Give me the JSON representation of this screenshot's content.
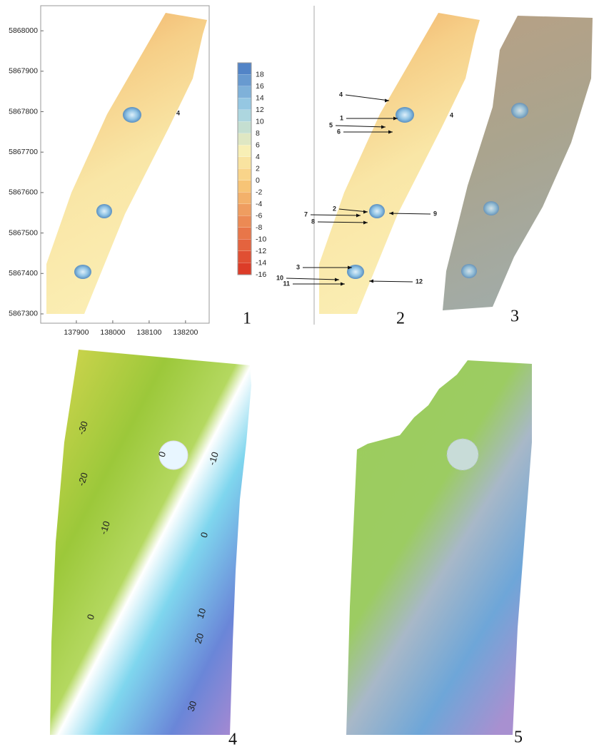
{
  "panel_labels": [
    "1",
    "2",
    "3",
    "4",
    "5"
  ],
  "panel1": {
    "yticks": [
      5868000,
      5867900,
      5867800,
      5867700,
      5867600,
      5867500,
      5867400,
      5867300
    ],
    "xticks": [
      137900,
      138000,
      138100,
      138200
    ],
    "xlim": [
      137802,
      138265
    ],
    "ylim": [
      5867277,
      5868062
    ],
    "annotation": "4"
  },
  "colorbar": {
    "ticks": [
      18,
      16,
      14,
      12,
      10,
      8,
      6,
      4,
      2,
      0,
      -2,
      -4,
      -6,
      -8,
      -10,
      -12,
      -14,
      -16
    ],
    "lim": [
      -16,
      20
    ]
  },
  "panel2": {
    "annotations": [
      "4",
      "1",
      "5",
      "6",
      "2",
      "7",
      "8",
      "9",
      "3",
      "10",
      "11",
      "12"
    ],
    "annotation_right": "4"
  },
  "panel4": {
    "contour_labels": [
      -30,
      -20,
      -10,
      0,
      -10,
      0,
      0,
      10,
      20,
      30
    ]
  }
}
